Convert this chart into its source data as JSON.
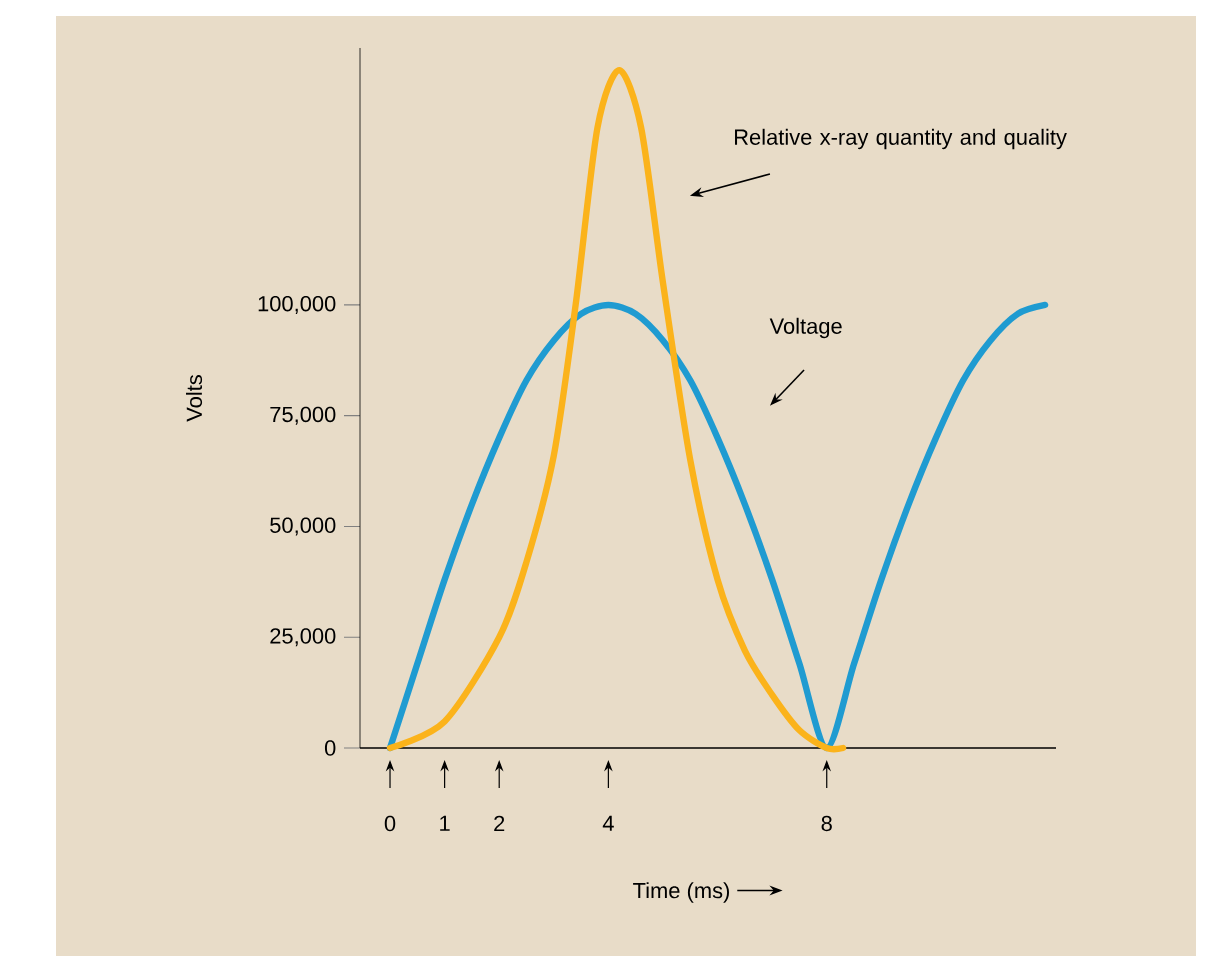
{
  "chart_data": {
    "type": "line",
    "xlabel": "Time (ms)",
    "ylabel": "Volts",
    "xlim": [
      -0.55,
      12.2
    ],
    "ylim": [
      0,
      158000
    ],
    "xticks": [
      0,
      1,
      2,
      4,
      8
    ],
    "yticks": [
      0,
      {
        "value": 25000,
        "label": "25,000"
      },
      {
        "value": 50000,
        "label": "50,000"
      },
      {
        "value": 75000,
        "label": "75,000"
      },
      {
        "value": 100000,
        "label": "100,000"
      }
    ],
    "series": [
      {
        "color": "#1f9bd1",
        "x": [
          0,
          0.5,
          1,
          1.5,
          2,
          2.5,
          3,
          3.5,
          4,
          4.5,
          5,
          5.5,
          6,
          6.5,
          7,
          7.5,
          8,
          8.5,
          9,
          9.5,
          10,
          10.5,
          11,
          11.5,
          12
        ],
        "values": [
          0,
          19000,
          38000,
          55000,
          70000,
          83000,
          92000,
          98000,
          100000,
          98000,
          92000,
          83000,
          70000,
          55000,
          38000,
          19000,
          0,
          19000,
          38000,
          55000,
          70000,
          83000,
          92000,
          98000,
          100000
        ]
      },
      {
        "color": "#fbb31b",
        "x": [
          0,
          1,
          2,
          2.5,
          3,
          3.4,
          3.8,
          4.2,
          4.6,
          5,
          5.5,
          6,
          6.5,
          7,
          7.5,
          8,
          8.3
        ],
        "values": [
          0,
          6000,
          25000,
          42000,
          66000,
          100000,
          140000,
          153000,
          140000,
          105000,
          65000,
          38000,
          22000,
          12000,
          4000,
          0,
          0
        ]
      }
    ],
    "annotations": [
      "Relative x-ray quantity and quality",
      "Voltage"
    ],
    "grid": false,
    "marker": "none",
    "line_style": "solid"
  }
}
